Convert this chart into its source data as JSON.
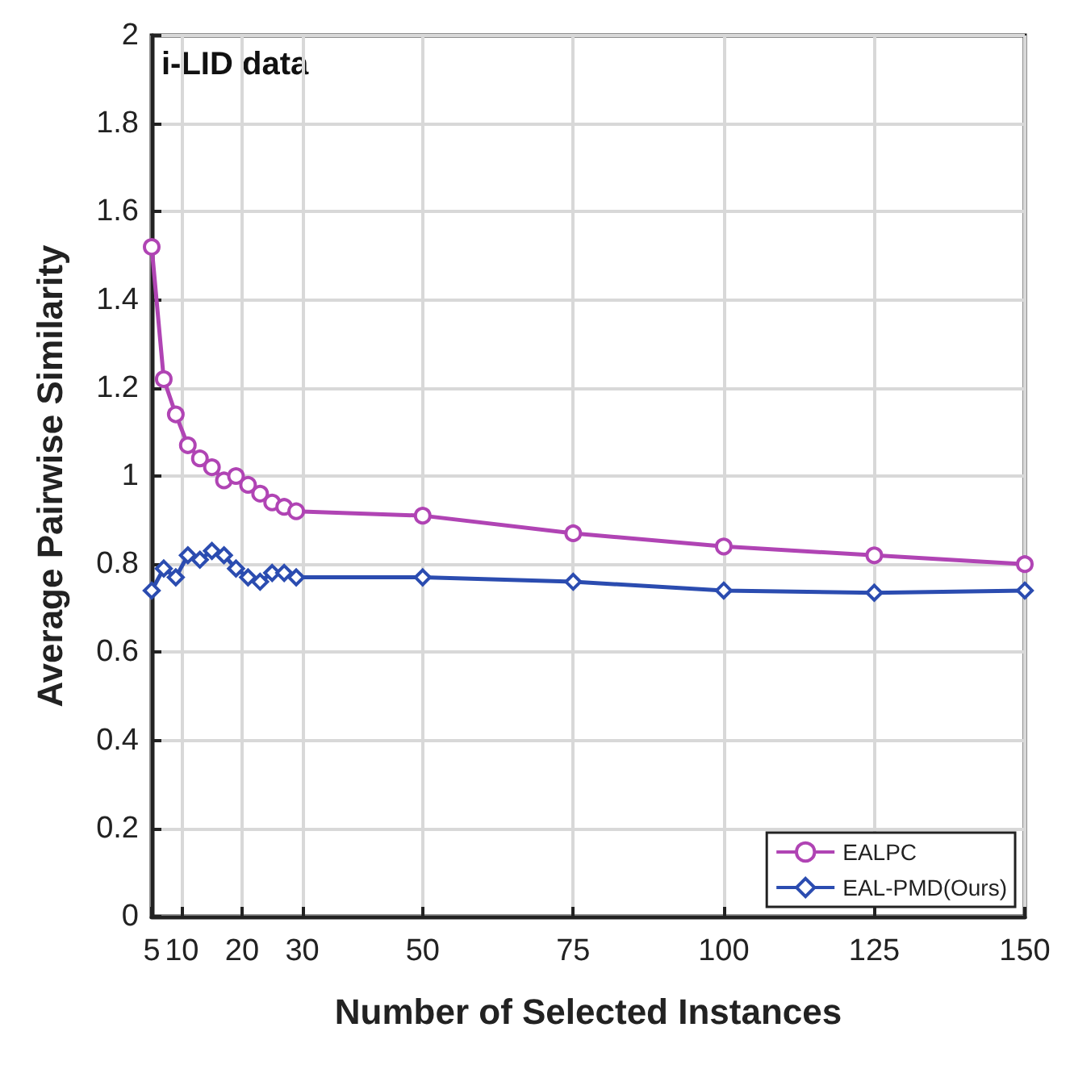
{
  "chart_data": {
    "type": "line",
    "xlabel": "Number of Selected Instances",
    "ylabel": "Average Pairwise Similarity",
    "annotations": [
      "i-LID data"
    ],
    "xlim": [
      5,
      150
    ],
    "xticks": [
      5,
      10,
      20,
      30,
      50,
      75,
      100,
      125,
      150
    ],
    "ylim": [
      0,
      2
    ],
    "yticks": [
      0,
      0.2,
      0.4,
      0.6,
      0.8,
      1,
      1.2,
      1.4,
      1.6,
      1.8,
      2
    ],
    "grid": true,
    "legend": "bottom right",
    "series": [
      {
        "name": "EALPC",
        "color": "#b044b4",
        "marker": "circle",
        "x": [
          5,
          7,
          9,
          11,
          13,
          15,
          17,
          19,
          21,
          23,
          25,
          27,
          29,
          50,
          75,
          100,
          125,
          150
        ],
        "values": [
          1.52,
          1.22,
          1.14,
          1.07,
          1.04,
          1.02,
          0.99,
          1.0,
          0.98,
          0.96,
          0.94,
          0.93,
          0.92,
          0.91,
          0.87,
          0.84,
          0.82,
          0.8
        ]
      },
      {
        "name": "EAL-PMD(Ours)",
        "color": "#2b4cb0",
        "marker": "diamond",
        "x": [
          5,
          7,
          9,
          11,
          13,
          15,
          17,
          19,
          21,
          23,
          25,
          27,
          29,
          50,
          75,
          100,
          125,
          150
        ],
        "values": [
          0.74,
          0.79,
          0.77,
          0.82,
          0.81,
          0.83,
          0.82,
          0.79,
          0.77,
          0.76,
          0.78,
          0.78,
          0.77,
          0.77,
          0.76,
          0.74,
          0.735,
          0.74
        ]
      }
    ]
  }
}
